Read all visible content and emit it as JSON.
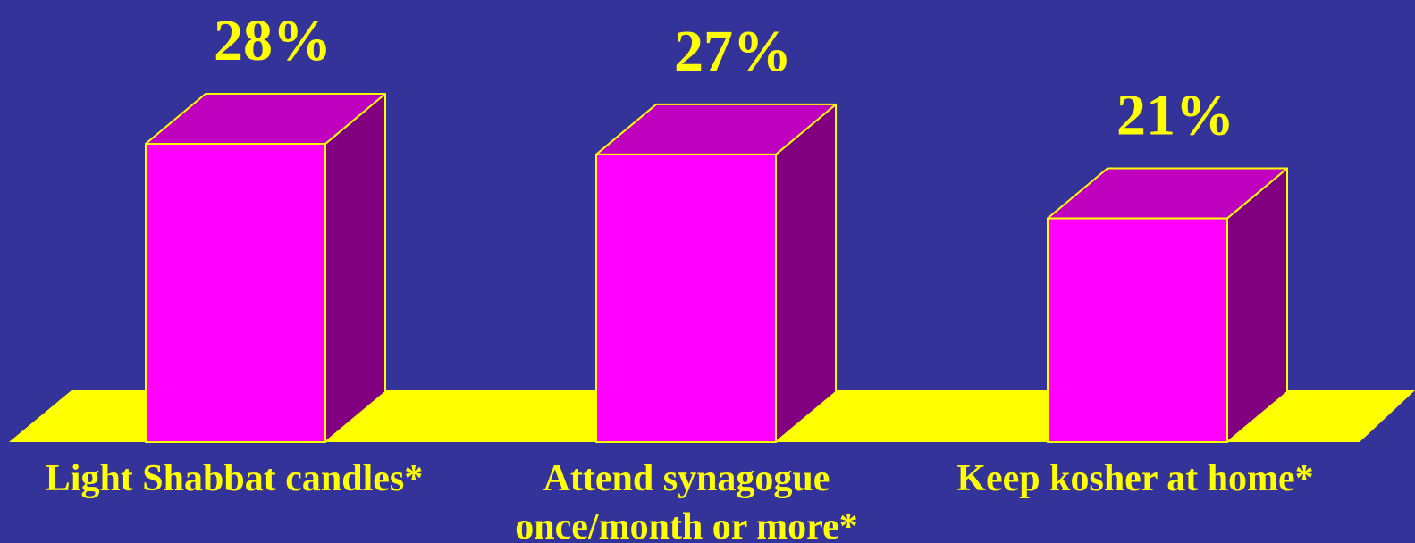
{
  "chart_data": {
    "type": "bar",
    "categories": [
      [
        "Light Shabbat candles*"
      ],
      [
        "Attend synagogue",
        "once/month or more*"
      ],
      [
        "Keep kosher at home*"
      ]
    ],
    "values": [
      28,
      27,
      21
    ],
    "value_labels": [
      "28%",
      "27%",
      "21%"
    ],
    "unit": "%",
    "ylim": [
      0,
      28
    ],
    "title": "",
    "xlabel": "",
    "ylabel": "",
    "grid": false,
    "legend": "none",
    "three_d": true
  },
  "colors": {
    "background": "#333399",
    "floor": "#ffff00",
    "bar_front": "#ff00ff",
    "bar_top": "#bf00bf",
    "bar_side": "#800080",
    "edge": "#ffff00",
    "text": "#ffff00"
  }
}
